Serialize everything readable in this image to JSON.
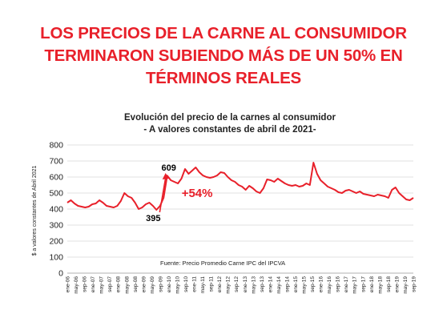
{
  "headline": {
    "line1": "LOS PRECIOS DE LA CARNE AL CONSUMIDOR",
    "line2": "TERMINARON SUBIENDO MÁS DE UN 50% EN",
    "line3": "TÉRMINOS REALES"
  },
  "chart_data": {
    "type": "line",
    "title": "Evolución del precio de la carnes al consumidor",
    "subtitle": "- A valores constantes de abril de 2021-",
    "ylabel": "$ a valores constantes de Abril 2021",
    "xlabel": "",
    "ylim": [
      0,
      800
    ],
    "yticks": [
      0,
      100,
      200,
      300,
      400,
      500,
      600,
      700,
      800
    ],
    "grid": true,
    "source": "Fuente: Precio Promedio Carne  IPC del IPCVA",
    "x_tick_labels": [
      "ene-06",
      "may-06",
      "sep-06",
      "ene-07",
      "may-07",
      "sep-07",
      "ene-08",
      "may-08",
      "sep-08",
      "ene-09",
      "may-09",
      "sep-09",
      "ene-10",
      "may-10",
      "sep-10",
      "ene-11",
      "may-11",
      "sep-11",
      "ene-12",
      "may-12",
      "sep-12",
      "ene-13",
      "may-13",
      "sep-13",
      "ene-14",
      "may-14",
      "sep-14",
      "ene-15",
      "may-15",
      "sep-15",
      "ene-16",
      "may-16",
      "sep-16",
      "ene-17",
      "may-17",
      "sep-17",
      "ene-18",
      "may-18",
      "sep-18",
      "ene-19",
      "may-19",
      "sep-19"
    ],
    "series": [
      {
        "color": "#e8202a",
        "values": [
          440,
          455,
          435,
          420,
          415,
          410,
          415,
          430,
          435,
          455,
          440,
          420,
          415,
          410,
          420,
          450,
          500,
          480,
          470,
          440,
          400,
          410,
          430,
          440,
          420,
          395,
          420,
          470,
          609,
          580,
          570,
          560,
          590,
          650,
          620,
          640,
          660,
          630,
          610,
          600,
          595,
          600,
          610,
          630,
          625,
          600,
          580,
          570,
          550,
          540,
          520,
          545,
          530,
          510,
          500,
          530,
          585,
          580,
          570,
          590,
          575,
          560,
          550,
          545,
          550,
          540,
          545,
          560,
          550,
          690,
          620,
          580,
          560,
          540,
          530,
          520,
          505,
          500,
          515,
          520,
          510,
          500,
          510,
          495,
          490,
          485,
          480,
          490,
          485,
          480,
          470,
          520,
          535,
          500,
          480,
          460,
          455,
          470
        ]
      }
    ],
    "annotations": [
      {
        "text": "609",
        "color": "#000000"
      },
      {
        "text": "395",
        "color": "#000000"
      },
      {
        "text": "+54%",
        "color": "#e8202a"
      }
    ]
  }
}
